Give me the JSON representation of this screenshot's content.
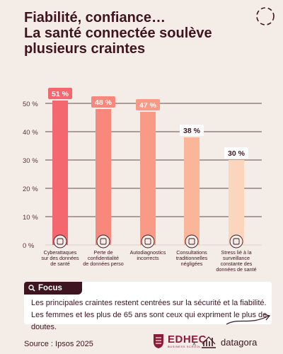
{
  "title_lines": [
    "Fiabilité, confiance…",
    "La santé connectée soulève",
    "plusieurs craintes"
  ],
  "chart_data": {
    "type": "bar",
    "title": "",
    "xlabel": "",
    "ylabel": "",
    "ylim": [
      0,
      50
    ],
    "yticks": [
      "0 %",
      "10 %",
      "20 %",
      "30 %",
      "40 %",
      "50 %"
    ],
    "categories": [
      "Cyberattaques sur des données de santé",
      "Perte de confidentialité de données perso",
      "Autodiagnostics incorrects",
      "Consultations traditionnelles négligées",
      "Stress lié à la surveillance constante des données de santé"
    ],
    "category_lines": [
      [
        "Cyberattaques",
        "sur des données",
        "de santé"
      ],
      [
        "Perte de",
        "confidentialité",
        "de données perso"
      ],
      [
        "Autodiagnostics",
        "incorrects"
      ],
      [
        "Consultations",
        "traditionnelles",
        "négligées"
      ],
      [
        "Stress lié à la",
        "surveillance",
        "constante des",
        "données de santé"
      ]
    ],
    "values": [
      51,
      48,
      47,
      38,
      30
    ],
    "value_labels": [
      "51 %",
      "48 %",
      "47 %",
      "38 %",
      "30 %"
    ],
    "colors": [
      "#f4676f",
      "#f8877c",
      "#f99a86",
      "#fbb598",
      "#fcd5bd"
    ],
    "label_bg": [
      "#f4676f",
      "#f8877c",
      "#f99a86",
      "#ffffff",
      "#ffffff"
    ],
    "label_fg": [
      "#ffffff",
      "#ffffff",
      "#ffffff",
      "#3d1420",
      "#3d1420"
    ],
    "icons": [
      "shield-lock-icon",
      "document-lock-icon",
      "stethoscope-screen-icon",
      "medical-case-icon",
      "clock-alarm-icon"
    ],
    "grid": true
  },
  "focus": {
    "label": "Focus",
    "text": "Les principales craintes restent centrées sur la sécurité et la fiabilité. Les femmes et les plus de 65 ans sont ceux qui expriment le plus de doutes."
  },
  "footer": {
    "source": "Source : Ipsos 2025",
    "edhec_name": "EDHEC",
    "edhec_sub": "BUSINESS SCHOOL",
    "separator": "x",
    "datagora_name": "datagora"
  },
  "colors": {
    "brand_dark": "#3d1420",
    "edhec": "#8c1a3a",
    "background": "#f4ece6"
  }
}
